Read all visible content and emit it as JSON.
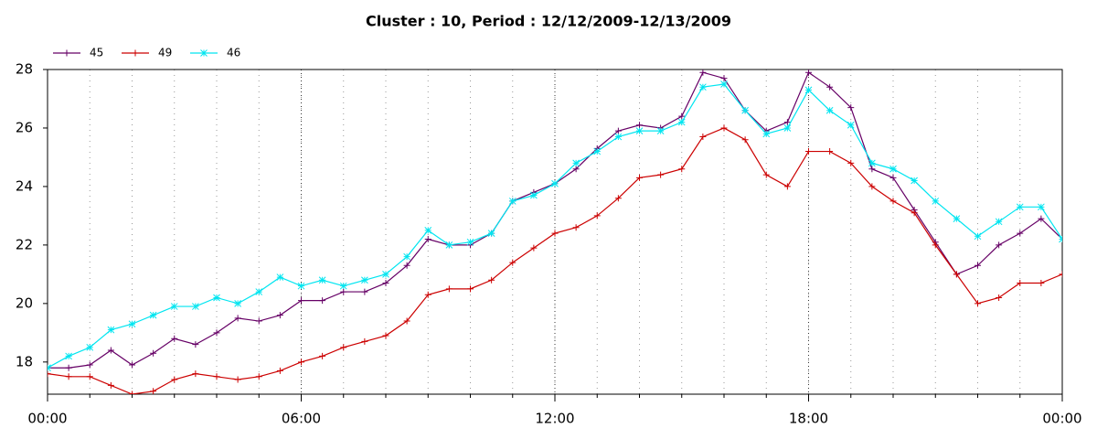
{
  "chart_data": {
    "type": "line",
    "title": "Cluster : 10, Period : 12/12/2009-12/13/2009",
    "x": [
      0,
      0.5,
      1,
      1.5,
      2,
      2.5,
      3,
      3.5,
      4,
      4.5,
      5,
      5.5,
      6,
      6.5,
      7,
      7.5,
      8,
      8.5,
      9,
      9.5,
      10,
      10.5,
      11,
      11.5,
      12,
      12.5,
      13,
      13.5,
      14,
      14.5,
      15,
      15.5,
      16,
      16.5,
      17,
      17.5,
      18,
      18.5,
      19,
      19.5,
      20,
      20.5,
      21,
      21.5,
      22,
      22.5,
      23,
      23.5,
      24
    ],
    "series": [
      {
        "name": "45",
        "color": "#660066",
        "marker": "plus",
        "values": [
          17.8,
          17.8,
          17.9,
          18.4,
          17.9,
          18.3,
          18.8,
          18.6,
          19.0,
          19.5,
          19.4,
          19.6,
          20.1,
          20.1,
          20.4,
          20.4,
          20.7,
          21.3,
          22.2,
          22.0,
          22.0,
          22.4,
          23.5,
          23.8,
          24.1,
          24.6,
          25.3,
          25.9,
          26.1,
          26.0,
          26.4,
          27.9,
          27.7,
          26.6,
          25.9,
          26.2,
          27.9,
          27.4,
          26.7,
          24.6,
          24.3,
          23.2,
          22.1,
          21.0,
          21.3,
          22.0,
          22.4,
          22.9,
          22.2
        ]
      },
      {
        "name": "49",
        "color": "#cc0000",
        "marker": "plus",
        "values": [
          17.6,
          17.5,
          17.5,
          17.2,
          16.9,
          17.0,
          17.4,
          17.6,
          17.5,
          17.4,
          17.5,
          17.7,
          18.0,
          18.2,
          18.5,
          18.7,
          18.9,
          19.4,
          20.3,
          20.5,
          20.5,
          20.8,
          21.4,
          21.9,
          22.4,
          22.6,
          23.0,
          23.6,
          24.3,
          24.4,
          24.6,
          25.7,
          26.0,
          25.6,
          24.4,
          24.0,
          25.2,
          25.2,
          24.8,
          24.0,
          23.5,
          23.1,
          22.0,
          21.0,
          20.0,
          20.2,
          20.7,
          20.7,
          21.0
        ]
      },
      {
        "name": "46",
        "color": "#00e5f0",
        "marker": "star",
        "values": [
          17.8,
          18.2,
          18.5,
          19.1,
          19.3,
          19.6,
          19.9,
          19.9,
          20.2,
          20.0,
          20.4,
          20.9,
          20.6,
          20.8,
          20.6,
          20.8,
          21.0,
          21.6,
          22.5,
          22.0,
          22.1,
          22.4,
          23.5,
          23.7,
          24.1,
          24.8,
          25.2,
          25.7,
          25.9,
          25.9,
          26.2,
          27.4,
          27.5,
          26.6,
          25.8,
          26.0,
          27.3,
          26.6,
          26.1,
          24.8,
          24.6,
          24.2,
          23.5,
          22.9,
          22.3,
          22.8,
          23.3,
          23.3,
          22.2
        ]
      }
    ],
    "xlim": [
      0,
      24
    ],
    "xticks": [
      {
        "value": 0,
        "label": "00:00"
      },
      {
        "value": 6,
        "label": "06:00"
      },
      {
        "value": 12,
        "label": "12:00"
      },
      {
        "value": 18,
        "label": "18:00"
      },
      {
        "value": 24,
        "label": "00:00"
      }
    ],
    "ylim": [
      16.9,
      28
    ],
    "yticks": [
      18,
      20,
      22,
      24,
      26,
      28
    ],
    "grid": true,
    "legend": "top-left"
  }
}
